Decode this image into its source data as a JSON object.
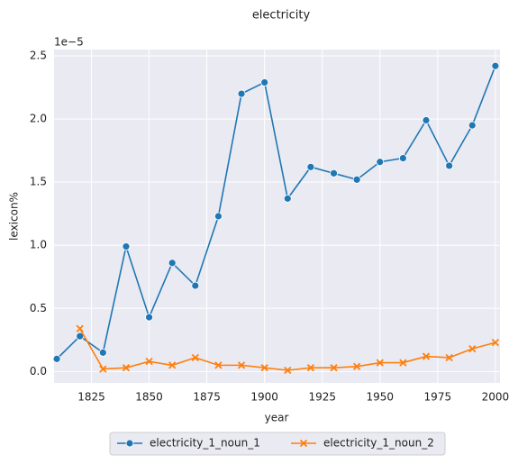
{
  "chart_data": {
    "type": "line",
    "title": "electricity",
    "x_label": "year",
    "y_label": "lexicon%",
    "y_offset_label": "1e−5",
    "x": [
      1810,
      1820,
      1830,
      1840,
      1850,
      1860,
      1870,
      1880,
      1890,
      1900,
      1910,
      1920,
      1930,
      1940,
      1950,
      1960,
      1970,
      1980,
      1990,
      2000
    ],
    "series": [
      {
        "name": "electricity_1_noun_1",
        "color": "#1f77b4",
        "marker": "circle",
        "values": [
          0.1,
          0.28,
          0.15,
          0.99,
          0.43,
          0.86,
          0.68,
          1.23,
          2.2,
          2.29,
          1.37,
          1.62,
          1.57,
          1.52,
          1.66,
          1.69,
          1.99,
          1.63,
          1.95,
          2.42
        ]
      },
      {
        "name": "electricity_1_noun_2",
        "color": "#ff7f0e",
        "marker": "x",
        "values": [
          null,
          0.34,
          0.02,
          0.03,
          0.08,
          0.05,
          0.11,
          0.05,
          0.05,
          0.03,
          0.01,
          0.03,
          0.03,
          0.04,
          0.07,
          0.07,
          0.12,
          0.11,
          0.18,
          0.23
        ]
      }
    ],
    "xlim": [
      1808.8,
      2002
    ],
    "ylim": [
      -0.09,
      2.55
    ],
    "xticks": [
      1825,
      1850,
      1875,
      1900,
      1925,
      1950,
      1975,
      2000
    ],
    "yticks": [
      {
        "value": 0,
        "label": "0.0"
      },
      0.5,
      {
        "value": 1,
        "label": "1.0"
      },
      1.5,
      {
        "value": 2,
        "label": "2.0"
      },
      2.5
    ],
    "grid": true,
    "legend": "below"
  }
}
